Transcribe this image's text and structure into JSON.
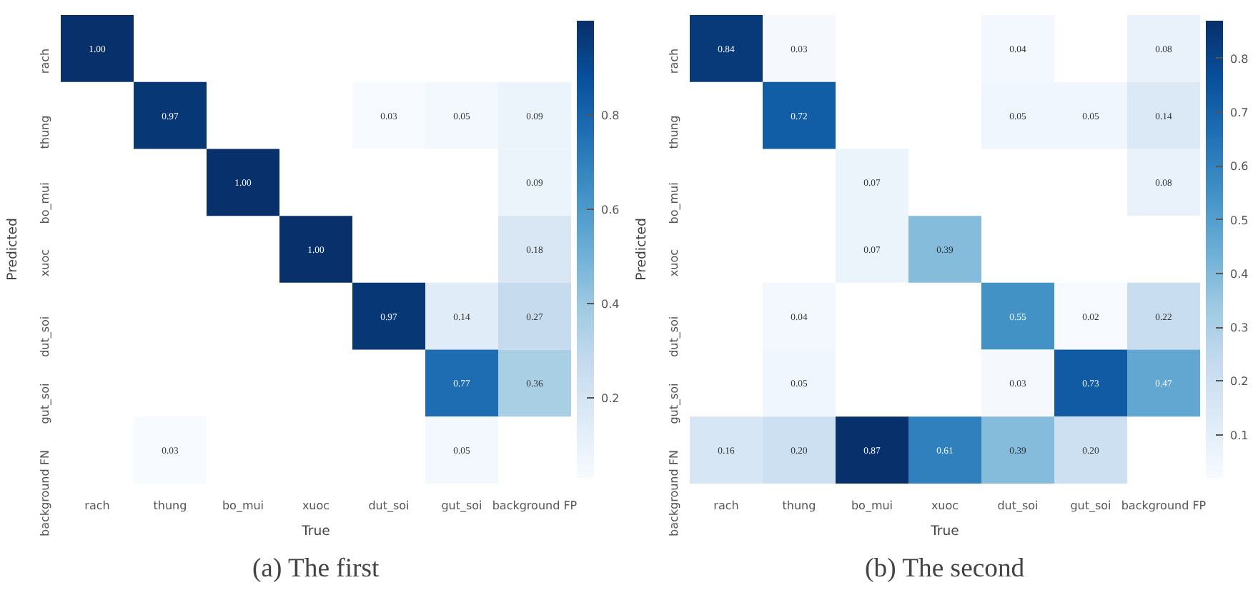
{
  "chart_data": [
    {
      "type": "heatmap",
      "xlabel": "True",
      "ylabel": "Predicted",
      "annotations": [
        "(a) The first"
      ],
      "categories": [
        "rach",
        "thung",
        "bo_mui",
        "xuoc",
        "dut_soi",
        "gut_soi",
        "background FP"
      ],
      "y_categories": [
        "rach",
        "thung",
        "bo_mui",
        "xuoc",
        "dut_soi",
        "gut_soi",
        "background FN"
      ],
      "cells": [
        [
          1.0,
          null,
          null,
          null,
          null,
          null,
          null
        ],
        [
          null,
          0.97,
          null,
          null,
          0.03,
          0.05,
          0.09
        ],
        [
          null,
          null,
          1.0,
          null,
          null,
          null,
          0.09
        ],
        [
          null,
          null,
          null,
          1.0,
          null,
          null,
          0.18
        ],
        [
          null,
          null,
          null,
          null,
          0.97,
          0.14,
          0.27
        ],
        [
          null,
          null,
          null,
          null,
          null,
          0.77,
          0.36
        ],
        [
          null,
          0.03,
          null,
          null,
          null,
          0.05,
          null
        ]
      ],
      "cell_labels": [
        [
          "1.00",
          null,
          null,
          null,
          null,
          null,
          null
        ],
        [
          null,
          "0.97",
          null,
          null,
          "0.03",
          "0.05",
          "0.09"
        ],
        [
          null,
          null,
          "1.00",
          null,
          null,
          null,
          "0.09"
        ],
        [
          null,
          null,
          null,
          "1.00",
          null,
          null,
          "0.18"
        ],
        [
          null,
          null,
          null,
          null,
          "0.97",
          "0.14",
          "0.27"
        ],
        [
          null,
          null,
          null,
          null,
          null,
          "0.77",
          "0.36"
        ],
        [
          null,
          "0.03",
          null,
          null,
          null,
          "0.05",
          null
        ]
      ],
      "clim": [
        0.03,
        1.0
      ],
      "cticks": [
        0.2,
        0.4,
        0.6,
        0.8
      ]
    },
    {
      "type": "heatmap",
      "xlabel": "True",
      "ylabel": "Predicted",
      "annotations": [
        "(b) The second"
      ],
      "categories": [
        "rach",
        "thung",
        "bo_mui",
        "xuoc",
        "dut_soi",
        "gut_soi",
        "background FP"
      ],
      "y_categories": [
        "rach",
        "thung",
        "bo_mui",
        "xuoc",
        "dut_soi",
        "gut_soi",
        "background FN"
      ],
      "cells": [
        [
          0.84,
          0.03,
          null,
          null,
          0.04,
          null,
          0.08
        ],
        [
          null,
          0.72,
          null,
          null,
          0.05,
          0.05,
          0.14
        ],
        [
          null,
          null,
          0.07,
          null,
          null,
          null,
          0.08
        ],
        [
          null,
          null,
          0.07,
          0.39,
          null,
          null,
          null
        ],
        [
          null,
          0.04,
          null,
          null,
          0.55,
          0.02,
          0.22
        ],
        [
          null,
          0.05,
          null,
          null,
          0.03,
          0.73,
          0.47
        ],
        [
          0.16,
          0.2,
          0.87,
          0.61,
          0.39,
          0.2,
          null
        ]
      ],
      "cell_labels": [
        [
          "0.84",
          "0.03",
          null,
          null,
          "0.04",
          null,
          "0.08"
        ],
        [
          null,
          "0.72",
          null,
          null,
          "0.05",
          "0.05",
          "0.14"
        ],
        [
          null,
          null,
          "0.07",
          null,
          null,
          null,
          "0.08"
        ],
        [
          null,
          null,
          "0.07",
          "0.39",
          null,
          null,
          null
        ],
        [
          null,
          "0.04",
          null,
          null,
          "0.55",
          "0.02",
          "0.22"
        ],
        [
          null,
          "0.05",
          null,
          null,
          "0.03",
          "0.73",
          "0.47"
        ],
        [
          "0.16",
          "0.20",
          "0.87",
          "0.61",
          "0.39",
          "0.20",
          null
        ]
      ],
      "clim": [
        0.02,
        0.87
      ],
      "cticks": [
        0.1,
        0.2,
        0.3,
        0.4,
        0.5,
        0.6,
        0.7,
        0.8
      ]
    }
  ]
}
